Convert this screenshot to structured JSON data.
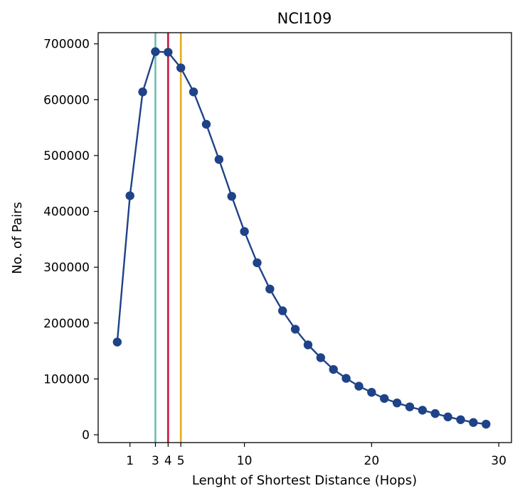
{
  "chart_data": {
    "type": "line",
    "title": "NCI109",
    "xlabel": "Lenght of Shortest Distance (Hops)",
    "ylabel": "No. of Pairs",
    "xlim": [
      -1.5,
      31
    ],
    "ylim": [
      -14000,
      720000
    ],
    "x_ticks": [
      1,
      3,
      4,
      5,
      10,
      20,
      30
    ],
    "y_ticks": [
      0,
      100000,
      200000,
      300000,
      400000,
      500000,
      600000,
      700000
    ],
    "grid": false,
    "series": [
      {
        "color": "#1f4388",
        "marker": "circle",
        "x": [
          0,
          1,
          2,
          3,
          4,
          5,
          6,
          7,
          8,
          9,
          10,
          11,
          12,
          13,
          14,
          15,
          16,
          17,
          18,
          19,
          20,
          21,
          22,
          23,
          24,
          25,
          26,
          27,
          28,
          29
        ],
        "y": [
          166000,
          428000,
          614000,
          686000,
          685000,
          657000,
          614000,
          556000,
          493000,
          427000,
          364000,
          308000,
          261000,
          222000,
          189000,
          161000,
          138000,
          117000,
          101000,
          87000,
          76000,
          65000,
          57000,
          50000,
          44000,
          38000,
          32000,
          27000,
          22000,
          19000
        ]
      }
    ],
    "vlines": [
      {
        "x": 3,
        "color": "#6bbfb2"
      },
      {
        "x": 4,
        "color": "#c8173f"
      },
      {
        "x": 5,
        "color": "#e3ad20"
      }
    ]
  }
}
